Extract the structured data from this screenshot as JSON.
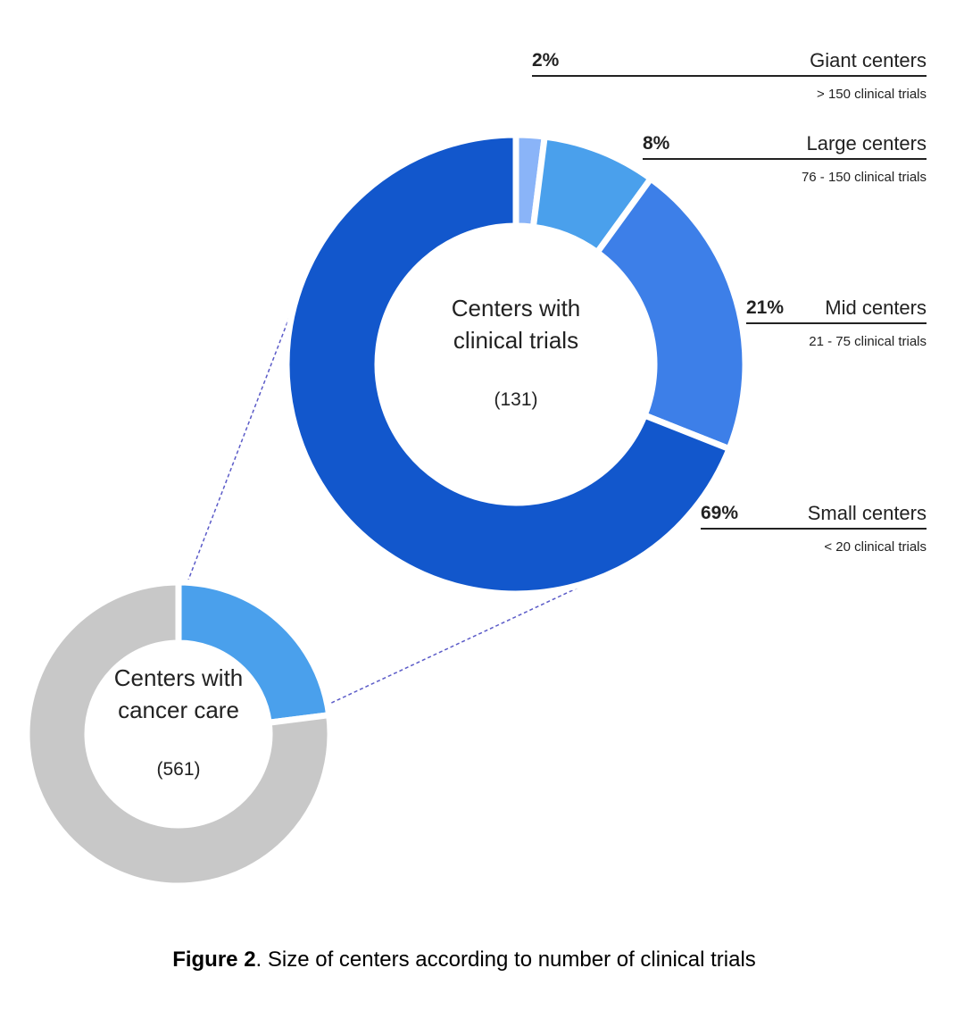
{
  "chart_data": [
    {
      "type": "donut",
      "center_label": [
        "Centers with",
        "clinical trials"
      ],
      "center_count": "(131)",
      "categories": [
        "Giant centers",
        "Large centers",
        "Mid centers",
        "Small centers"
      ],
      "descriptions": [
        "> 150 clinical trials",
        "76 - 150 clinical trials",
        "21 - 75 clinical trials",
        "< 20 clinical trials"
      ],
      "values": [
        2,
        8,
        21,
        69
      ],
      "value_labels": [
        "2%",
        "8%",
        "21%",
        "69%"
      ],
      "colors": [
        "#8ab4f8",
        "#4aa0ec",
        "#3d7fe8",
        "#1257cc"
      ]
    },
    {
      "type": "donut",
      "center_label": [
        "Centers with",
        "cancer care"
      ],
      "center_count": "(561)",
      "values": [
        23,
        77
      ],
      "colors": [
        "#4aa0ec",
        "#c8c8c8"
      ]
    }
  ],
  "caption": {
    "label": "Figure 2",
    "text": ". Size of centers according to number of clinical trials"
  }
}
